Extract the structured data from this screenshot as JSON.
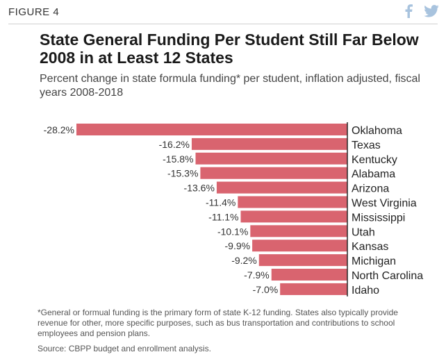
{
  "figure_label": "FIGURE 4",
  "share": {
    "facebook_icon": "facebook-icon",
    "twitter_icon": "twitter-icon"
  },
  "colors": {
    "bar": "#d9646f",
    "axis": "#222222",
    "share_icon": "#a8c3de"
  },
  "title": "State General Funding Per Student Still Far Below 2008 in at Least 12 States",
  "subtitle": "Percent change in state formula funding* per student, inflation adjusted, fiscal years 2008-2018",
  "footnote": "*General or formual funding is the primary form of state K-12 funding. States also typically provide revenue for other, more specific purposes, such as bus transportation and contributions to school employees and pension plans.",
  "source": "Source: CBPP budget and enrollment analysis.",
  "chart_data": {
    "type": "bar",
    "orientation": "horizontal",
    "categories": [
      "Oklahoma",
      "Texas",
      "Kentucky",
      "Alabama",
      "Arizona",
      "West Virginia",
      "Mississippi",
      "Utah",
      "Kansas",
      "Michigan",
      "North Carolina",
      "Idaho"
    ],
    "values": [
      -28.2,
      -16.2,
      -15.8,
      -15.3,
      -13.6,
      -11.4,
      -11.1,
      -10.1,
      -9.9,
      -9.2,
      -7.9,
      -7.0
    ],
    "data_labels": [
      "-28.2%",
      "-16.2%",
      "-15.8%",
      "-15.3%",
      "-13.6%",
      "-11.4%",
      "-11.1%",
      "-10.1%",
      "-9.9%",
      "-9.2%",
      "-7.9%",
      "-7.0%"
    ],
    "unit": "%",
    "xlim": [
      -28.2,
      0
    ],
    "grid": false,
    "legend": "none"
  }
}
